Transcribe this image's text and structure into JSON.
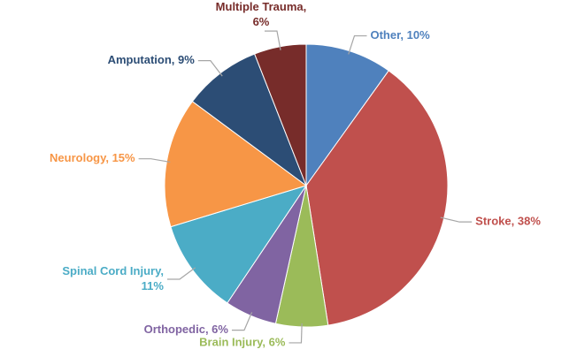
{
  "chart_data": {
    "type": "pie",
    "categories": [
      "Other",
      "Stroke",
      "Brain Injury",
      "Orthopedic",
      "Spinal Cord Injury",
      "Neurology",
      "Amputation",
      "Multiple Trauma"
    ],
    "values": [
      10,
      38,
      6,
      6,
      11,
      15,
      9,
      6
    ],
    "value_labels": [
      "Other, 10%",
      "Stroke, 38%",
      "Brain Injury, 6%",
      "Orthopedic, 6%",
      "Spinal Cord Injury, 11%",
      "Neurology, 15%",
      "Amputation, 9%",
      "Multiple Trauma, 6%"
    ],
    "colors": [
      "#4f81bd",
      "#c0504d",
      "#9bbb59",
      "#8064a2",
      "#4bacc6",
      "#f79646",
      "#2c4d75",
      "#772c2a"
    ]
  }
}
